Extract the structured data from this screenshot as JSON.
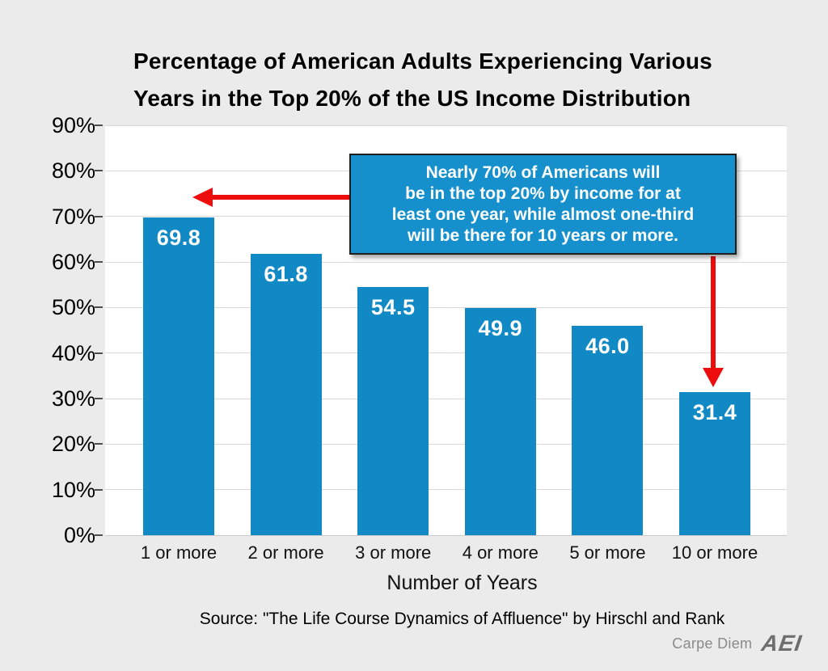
{
  "title": {
    "line1": "Percentage of American Adults Experiencing Various",
    "line2": "Years in the Top 20% of the US Income Distribution"
  },
  "chart_data": {
    "type": "bar",
    "categories": [
      "1 or more",
      "2 or more",
      "3 or more",
      "4 or more",
      "5 or more",
      "10 or more"
    ],
    "values": [
      69.8,
      61.8,
      54.5,
      49.9,
      46.0,
      31.4
    ],
    "bar_labels": [
      "69.8",
      "61.8",
      "54.5",
      "49.9",
      "46.0",
      "31.4"
    ],
    "title": "Percentage of American Adults Experiencing Various Years in the Top 20% of the US Income Distribution",
    "xlabel": "Number of Years",
    "ylabel": "",
    "ylim": [
      0,
      90
    ],
    "ytick_values": [
      0,
      10,
      20,
      30,
      40,
      50,
      60,
      70,
      80,
      90
    ],
    "ytick_labels": [
      "0%",
      "10%",
      "20%",
      "30%",
      "40%",
      "50%",
      "60%",
      "70%",
      "80%",
      "90%"
    ],
    "grid": true,
    "legend": "none",
    "bar_color": "#1089c5"
  },
  "annotation": {
    "text": "Nearly 70% of Americans will\nbe in the top 20% by income for at\nleast one year, while almost one-third\nwill be there for 10 years or more.",
    "bg_color": "#1590cd",
    "arrow_color": "#ee0d0d"
  },
  "source": "Source: \"The Life Course Dynamics of Affluence\" by Hirschl and Rank",
  "footer": {
    "carpe_diem": "Carpe Diem",
    "aei": "AEI"
  },
  "colors": {
    "background": "#ebebeb",
    "plot_background": "#ffffff",
    "gridline": "#d9d9d9",
    "text": "#000000"
  }
}
